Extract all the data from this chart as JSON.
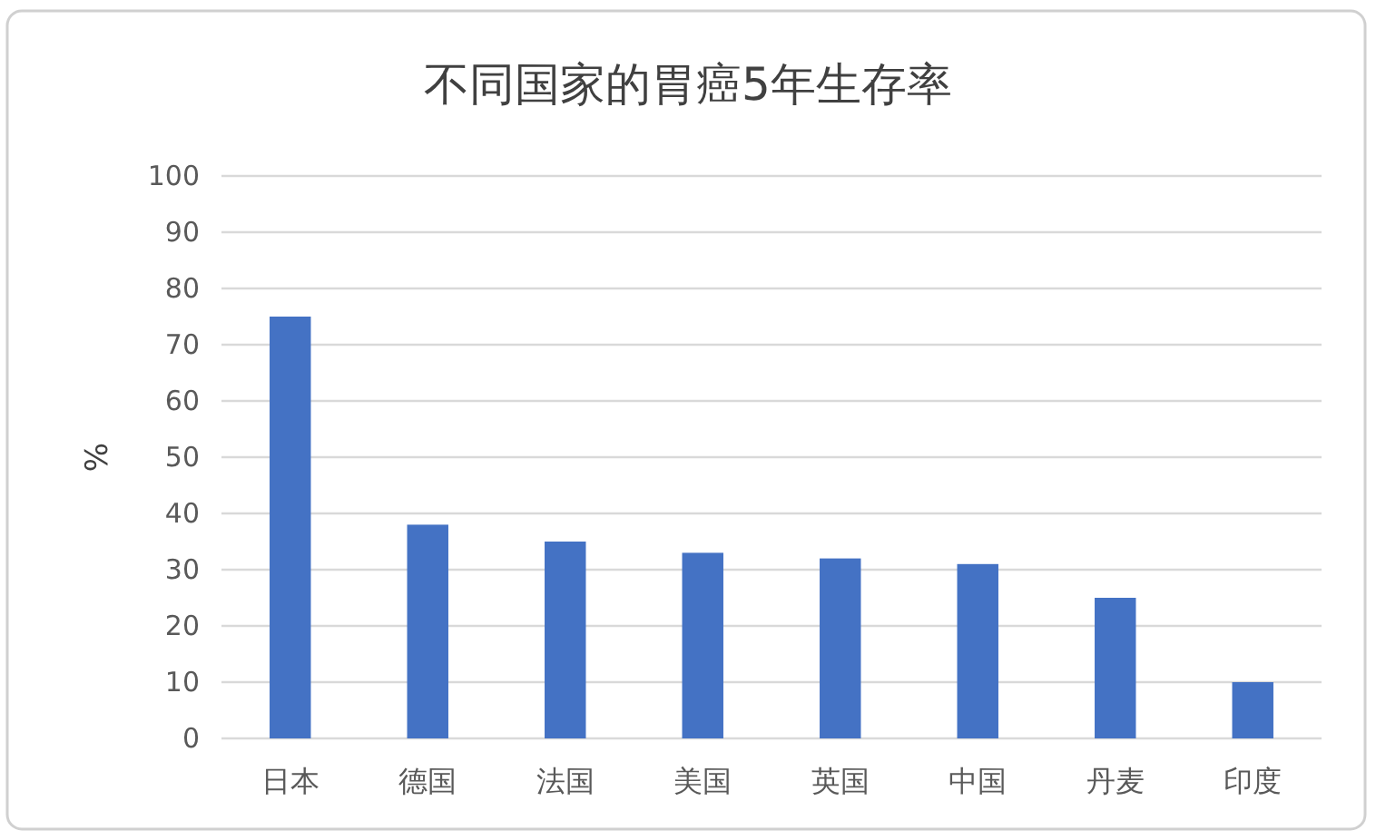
{
  "chart_data": {
    "type": "bar",
    "title": "不同国家的胃癌5年生存率",
    "ylabel": "%",
    "categories": [
      "日本",
      "德国",
      "法国",
      "美国",
      "英国",
      "中国",
      "丹麦",
      "印度"
    ],
    "values": [
      75,
      38,
      35,
      33,
      32,
      31,
      25,
      10
    ],
    "color": "#4472c4",
    "ylim": [
      0,
      100
    ],
    "yticks": [
      0,
      10,
      20,
      30,
      40,
      50,
      60,
      70,
      80,
      90,
      100
    ],
    "grid": "y"
  }
}
